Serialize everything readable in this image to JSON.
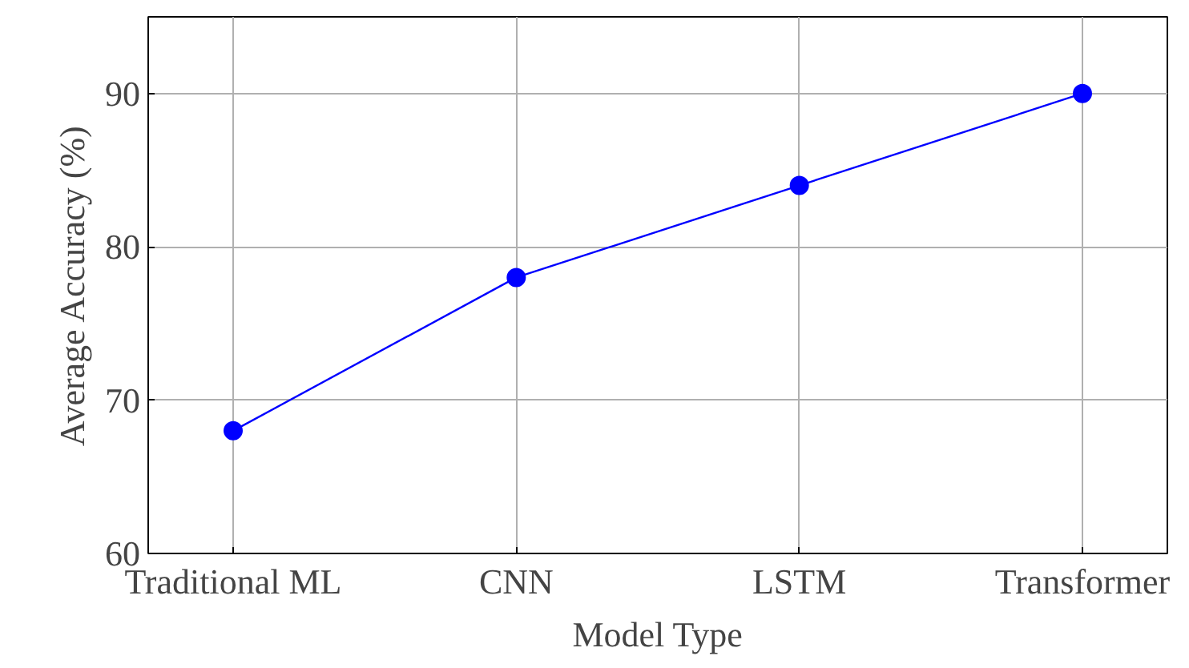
{
  "chart_data": {
    "type": "line",
    "xlabel": "Model Type",
    "ylabel": "Average Accuracy (%)",
    "categories": [
      "Traditional ML",
      "CNN",
      "LSTM",
      "Transformer"
    ],
    "series": [
      {
        "color": "#0000ff",
        "values": [
          68,
          78,
          84,
          90
        ]
      }
    ],
    "ylim": [
      60,
      95
    ],
    "yticks": [
      60,
      70,
      80,
      90
    ],
    "grid": true,
    "marker": "circle",
    "line_style": "solid"
  }
}
